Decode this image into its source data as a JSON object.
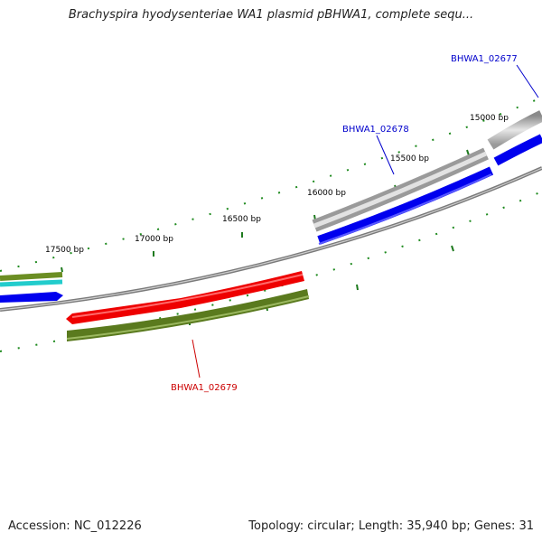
{
  "title": "Brachyspira hyodysenteriae WA1 plasmid pBHWA1, complete sequ...",
  "footer": {
    "accession": "Accession: NC_012226",
    "summary": "Topology: circular; Length: 35,940 bp; Genes: 31"
  },
  "tick_labels": [
    "17500 bp",
    "17000 bp",
    "16500 bp",
    "16000 bp",
    "15500 bp",
    "15000 bp"
  ],
  "gene_labels": [
    {
      "text": "BHWA1_02677",
      "color": "#0000cc"
    },
    {
      "text": "BHWA1_02678",
      "color": "#0000cc"
    },
    {
      "text": "BHWA1_02679",
      "color": "#cc0000"
    }
  ],
  "colors": {
    "backbone": "#7a7a7a",
    "feature_gray": "#bdbdbd",
    "forward_cds": "#0000ee",
    "reverse_cds": "#ee0000",
    "gene_green": "#5a7a1e",
    "cyan": "#22cccc",
    "tick_green": "#007700"
  }
}
